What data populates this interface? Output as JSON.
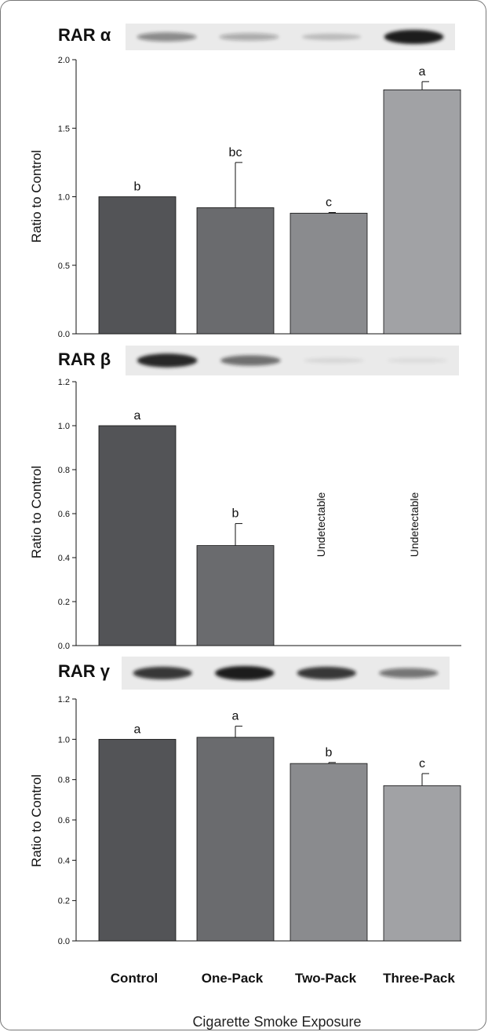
{
  "colors": {
    "bar_colors": [
      "#535457",
      "#6a6b6e",
      "#8a8b8e",
      "#a1a2a5"
    ],
    "band_bg": "#eaeaea",
    "band_dark": "#1a1a1a"
  },
  "categories": [
    "Control",
    "One-Pack",
    "Two-Pack",
    "Three-Pack"
  ],
  "xlabel": "Cigarette Smoke Exposure",
  "chart_data": [
    {
      "type": "bar",
      "panel_label": "RAR α",
      "ylabel": "Ratio to Control",
      "ylim": [
        0,
        2.0
      ],
      "yticks": [
        "0.0",
        "0.5",
        "1.0",
        "1.5",
        "2.0"
      ],
      "ytick_values": [
        0,
        0.5,
        1.0,
        1.5,
        2.0
      ],
      "categories": [
        "Control",
        "One-Pack",
        "Two-Pack",
        "Three-Pack"
      ],
      "values": [
        1.0,
        0.92,
        0.88,
        1.78
      ],
      "errors": [
        0,
        0.33,
        0.005,
        0.06
      ],
      "significance": [
        "b",
        "bc",
        "c",
        "a"
      ],
      "band_intensity": [
        0.45,
        0.3,
        0.2,
        1.0
      ],
      "annotations": []
    },
    {
      "type": "bar",
      "panel_label": "RAR β",
      "ylabel": "Ratio to Control",
      "ylim": [
        0,
        1.2
      ],
      "yticks": [
        "0.0",
        "0.2",
        "0.4",
        "0.6",
        "0.8",
        "1.0",
        "1.2"
      ],
      "ytick_values": [
        0,
        0.2,
        0.4,
        0.6,
        0.8,
        1.0,
        1.2
      ],
      "categories": [
        "Control",
        "One-Pack",
        "Two-Pack",
        "Three-Pack"
      ],
      "values": [
        1.0,
        0.455,
        null,
        null
      ],
      "errors": [
        0,
        0.1,
        null,
        null
      ],
      "significance": [
        "a",
        "b",
        "",
        ""
      ],
      "band_intensity": [
        0.95,
        0.6,
        0.08,
        0.06
      ],
      "annotations": [
        "",
        "",
        "Undetectable",
        "Undetectable"
      ]
    },
    {
      "type": "bar",
      "panel_label": "RAR γ",
      "ylabel": "Ratio to Control",
      "ylim": [
        0,
        1.2
      ],
      "yticks": [
        "0.0",
        "0.2",
        "0.4",
        "0.6",
        "0.8",
        "1.0",
        "1.2"
      ],
      "ytick_values": [
        0,
        0.2,
        0.4,
        0.6,
        0.8,
        1.0,
        1.2
      ],
      "categories": [
        "Control",
        "One-Pack",
        "Two-Pack",
        "Three-Pack"
      ],
      "values": [
        1.0,
        1.01,
        0.88,
        0.77
      ],
      "errors": [
        0,
        0.055,
        0.005,
        0.06
      ],
      "significance": [
        "a",
        "a",
        "b",
        "c"
      ],
      "band_intensity": [
        0.85,
        1.0,
        0.85,
        0.55
      ],
      "annotations": []
    }
  ]
}
